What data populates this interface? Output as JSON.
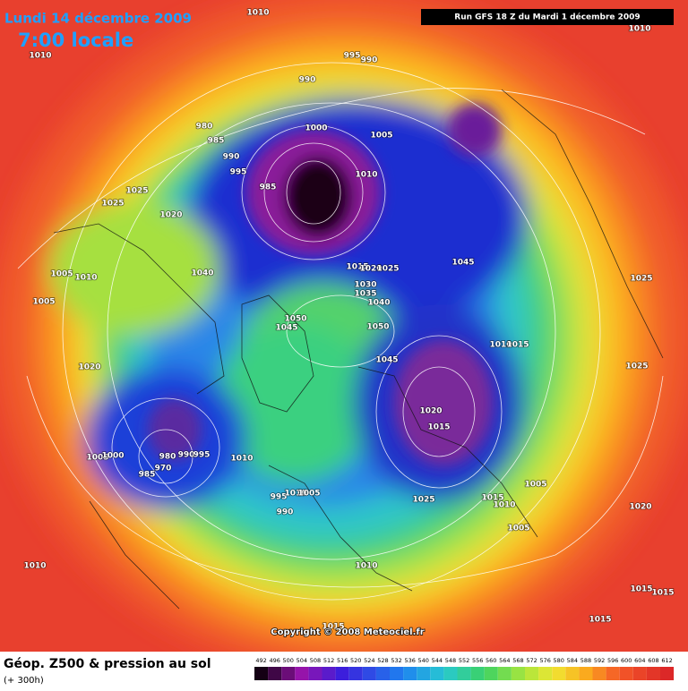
{
  "header": {
    "date": "Lundi 14 décembre 2009",
    "time": "7:00 locale",
    "run": "Run GFS 18 Z du Mardi 1 décembre 2009"
  },
  "isobar_labels": [
    "1010",
    "1010",
    "995",
    "990",
    "990",
    "1010",
    "980",
    "985",
    "990",
    "995",
    "1000",
    "1005",
    "1010",
    "985",
    "1025",
    "1025",
    "1020",
    "1045",
    "1015",
    "1020",
    "1025",
    "1030",
    "1035",
    "1040",
    "1040",
    "1025",
    "1005",
    "1010",
    "1005",
    "1050",
    "1045",
    "1050",
    "1010",
    "1015",
    "1045",
    "1025",
    "1020",
    "1020",
    "1015",
    "1005",
    "1000",
    "980",
    "990",
    "995",
    "985",
    "970",
    "1010",
    "995",
    "1010",
    "1005",
    "990",
    "1025",
    "1015",
    "1010",
    "1005",
    "1005",
    "1020",
    "1010",
    "1010",
    "1015",
    "1015",
    "1015",
    "1015"
  ],
  "copyright": "Copyright © 2008 Meteociel.fr",
  "footer": {
    "title": "Géop. Z500 & pression au sol",
    "horizon": "(+ 300h)"
  },
  "legend": {
    "scale": [
      492,
      496,
      500,
      504,
      508,
      512,
      516,
      520,
      524,
      528,
      532,
      536,
      540,
      544,
      548,
      552,
      556,
      560,
      564,
      568,
      572,
      576,
      580,
      584,
      588,
      592,
      596,
      600,
      604,
      608,
      612
    ]
  }
}
